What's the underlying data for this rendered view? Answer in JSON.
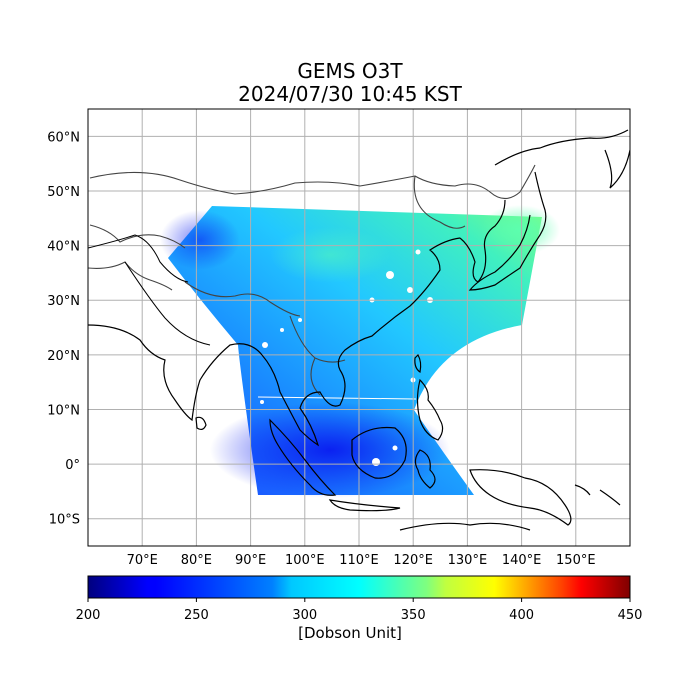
{
  "title_line1": "GEMS O3T",
  "title_line2": "2024/07/30 10:45 KST",
  "lon_ticks": [
    "70°E",
    "80°E",
    "90°E",
    "100°E",
    "110°E",
    "120°E",
    "130°E",
    "140°E",
    "150°E"
  ],
  "lat_ticks": [
    "60°N",
    "50°N",
    "40°N",
    "30°N",
    "20°N",
    "10°N",
    "0°",
    "10°S"
  ],
  "lon_tick_values": [
    70,
    80,
    90,
    100,
    110,
    120,
    130,
    140,
    150
  ],
  "lat_tick_values": [
    60,
    50,
    40,
    30,
    20,
    10,
    0,
    -10
  ],
  "lon_range": [
    60,
    160
  ],
  "lat_range": [
    -15,
    65
  ],
  "colorbar": {
    "ticks": [
      "200",
      "250",
      "300",
      "350",
      "400",
      "450"
    ],
    "tick_values": [
      200,
      250,
      300,
      350,
      400,
      450
    ],
    "range": [
      200,
      450
    ],
    "label": "[Dobson Unit]",
    "colormap": "jet"
  },
  "grid": true,
  "colors": {
    "coast": "#000000",
    "borders": "#444444",
    "grid": "#b0b0b0"
  }
}
